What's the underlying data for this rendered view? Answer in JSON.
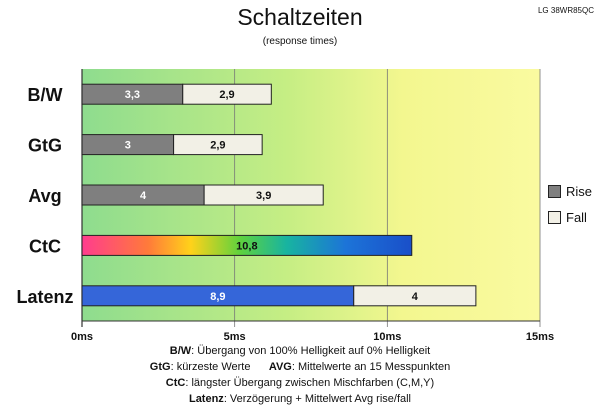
{
  "header": {
    "title": "Schaltzeiten",
    "subtitle": "(response times)",
    "model": "LG 38WR85QC"
  },
  "legend": [
    {
      "label": "Rise",
      "color": "#7f7f7f"
    },
    {
      "label": "Fall",
      "color": "#f2f0e6"
    }
  ],
  "chart_data": {
    "type": "bar",
    "orientation": "horizontal",
    "stacked": true,
    "categories": [
      "B/W",
      "GtG",
      "Avg",
      "CtC",
      "Latenz"
    ],
    "series": [
      {
        "name": "Rise",
        "values": [
          3.3,
          3,
          4,
          null,
          null
        ],
        "labels": [
          "3,3",
          "3",
          "4",
          "",
          ""
        ]
      },
      {
        "name": "Fall",
        "values": [
          2.9,
          2.9,
          3.9,
          null,
          null
        ],
        "labels": [
          "2,9",
          "2,9",
          "3,9",
          "",
          ""
        ]
      },
      {
        "name": "",
        "values": [
          null,
          null,
          null,
          10.8,
          8.9
        ],
        "labels": [
          "",
          "",
          "",
          "10,8",
          "8,9"
        ]
      },
      {
        "name": "",
        "values": [
          null,
          null,
          null,
          null,
          4
        ],
        "labels": [
          "",
          "",
          "",
          "",
          "4"
        ]
      }
    ],
    "xlim": [
      0,
      15
    ],
    "xticks": [
      "0ms",
      "5ms",
      "10ms",
      "15ms"
    ],
    "grid": "vertical",
    "legend_position": "right"
  },
  "colors": {
    "rise": "#7f7f7f",
    "fall": "#f2f0e6",
    "latenz": "#3566d9",
    "bg_green": "#8fdf93",
    "bg_yellow": "#fafaa0"
  },
  "footnotes": [
    {
      "key": "B/W",
      "text": ":  Übergang von 100% Helligkeit auf 0% Helligkeit"
    },
    {
      "key": "GtG",
      "text": ": kürzeste  Werte",
      "key2": "AVG",
      "text2": ": Mittelwerte  an 15 Messpunkten"
    },
    {
      "key": "CtC",
      "text": ": längster Übergang  zwischen Mischfarben (C,M,Y)"
    },
    {
      "key": "Latenz",
      "text": ": Verzögerung  + Mittelwert  Avg rise/fall"
    }
  ]
}
